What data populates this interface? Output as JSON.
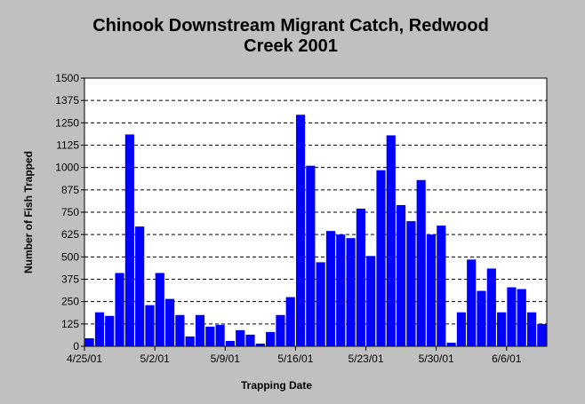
{
  "chart_data": {
    "type": "bar",
    "title_lines": [
      "Chinook Downstream Migrant Catch, Redwood",
      "Creek 2001"
    ],
    "xlabel": "Trapping Date",
    "ylabel": "Number of Fish Trapped",
    "ylim": [
      0,
      1500
    ],
    "yticks": [
      0,
      125,
      250,
      375,
      500,
      625,
      750,
      875,
      1000,
      1125,
      1250,
      1375,
      1500
    ],
    "xtick_labels": [
      {
        "label": "4/25/01",
        "index": 0
      },
      {
        "label": "5/2/01",
        "index": 7
      },
      {
        "label": "5/9/01",
        "index": 14
      },
      {
        "label": "5/16/01",
        "index": 21
      },
      {
        "label": "5/23/01",
        "index": 28
      },
      {
        "label": "5/30/01",
        "index": 35
      },
      {
        "label": "6/6/01",
        "index": 42
      }
    ],
    "grid": true,
    "bar_color": "#0000ff",
    "categories": [
      "4/25/01",
      "4/26/01",
      "4/27/01",
      "4/28/01",
      "4/29/01",
      "4/30/01",
      "5/1/01",
      "5/2/01",
      "5/3/01",
      "5/4/01",
      "5/5/01",
      "5/6/01",
      "5/7/01",
      "5/8/01",
      "5/9/01",
      "5/10/01",
      "5/11/01",
      "5/12/01",
      "5/13/01",
      "5/14/01",
      "5/15/01",
      "5/16/01",
      "5/17/01",
      "5/18/01",
      "5/19/01",
      "5/20/01",
      "5/21/01",
      "5/22/01",
      "5/23/01",
      "5/24/01",
      "5/25/01",
      "5/26/01",
      "5/27/01",
      "5/28/01",
      "5/29/01",
      "5/30/01",
      "5/31/01",
      "6/1/01",
      "6/2/01",
      "6/3/01",
      "6/4/01",
      "6/5/01",
      "6/6/01",
      "6/7/01",
      "6/8/01",
      "6/9/01"
    ],
    "values": [
      45,
      190,
      170,
      410,
      1185,
      670,
      230,
      410,
      265,
      175,
      55,
      175,
      110,
      120,
      30,
      90,
      65,
      15,
      80,
      175,
      275,
      1295,
      1010,
      470,
      645,
      625,
      605,
      770,
      505,
      985,
      1180,
      790,
      700,
      930,
      625,
      675,
      20,
      190,
      485,
      310,
      435,
      190,
      330,
      320,
      190,
      125
    ]
  }
}
